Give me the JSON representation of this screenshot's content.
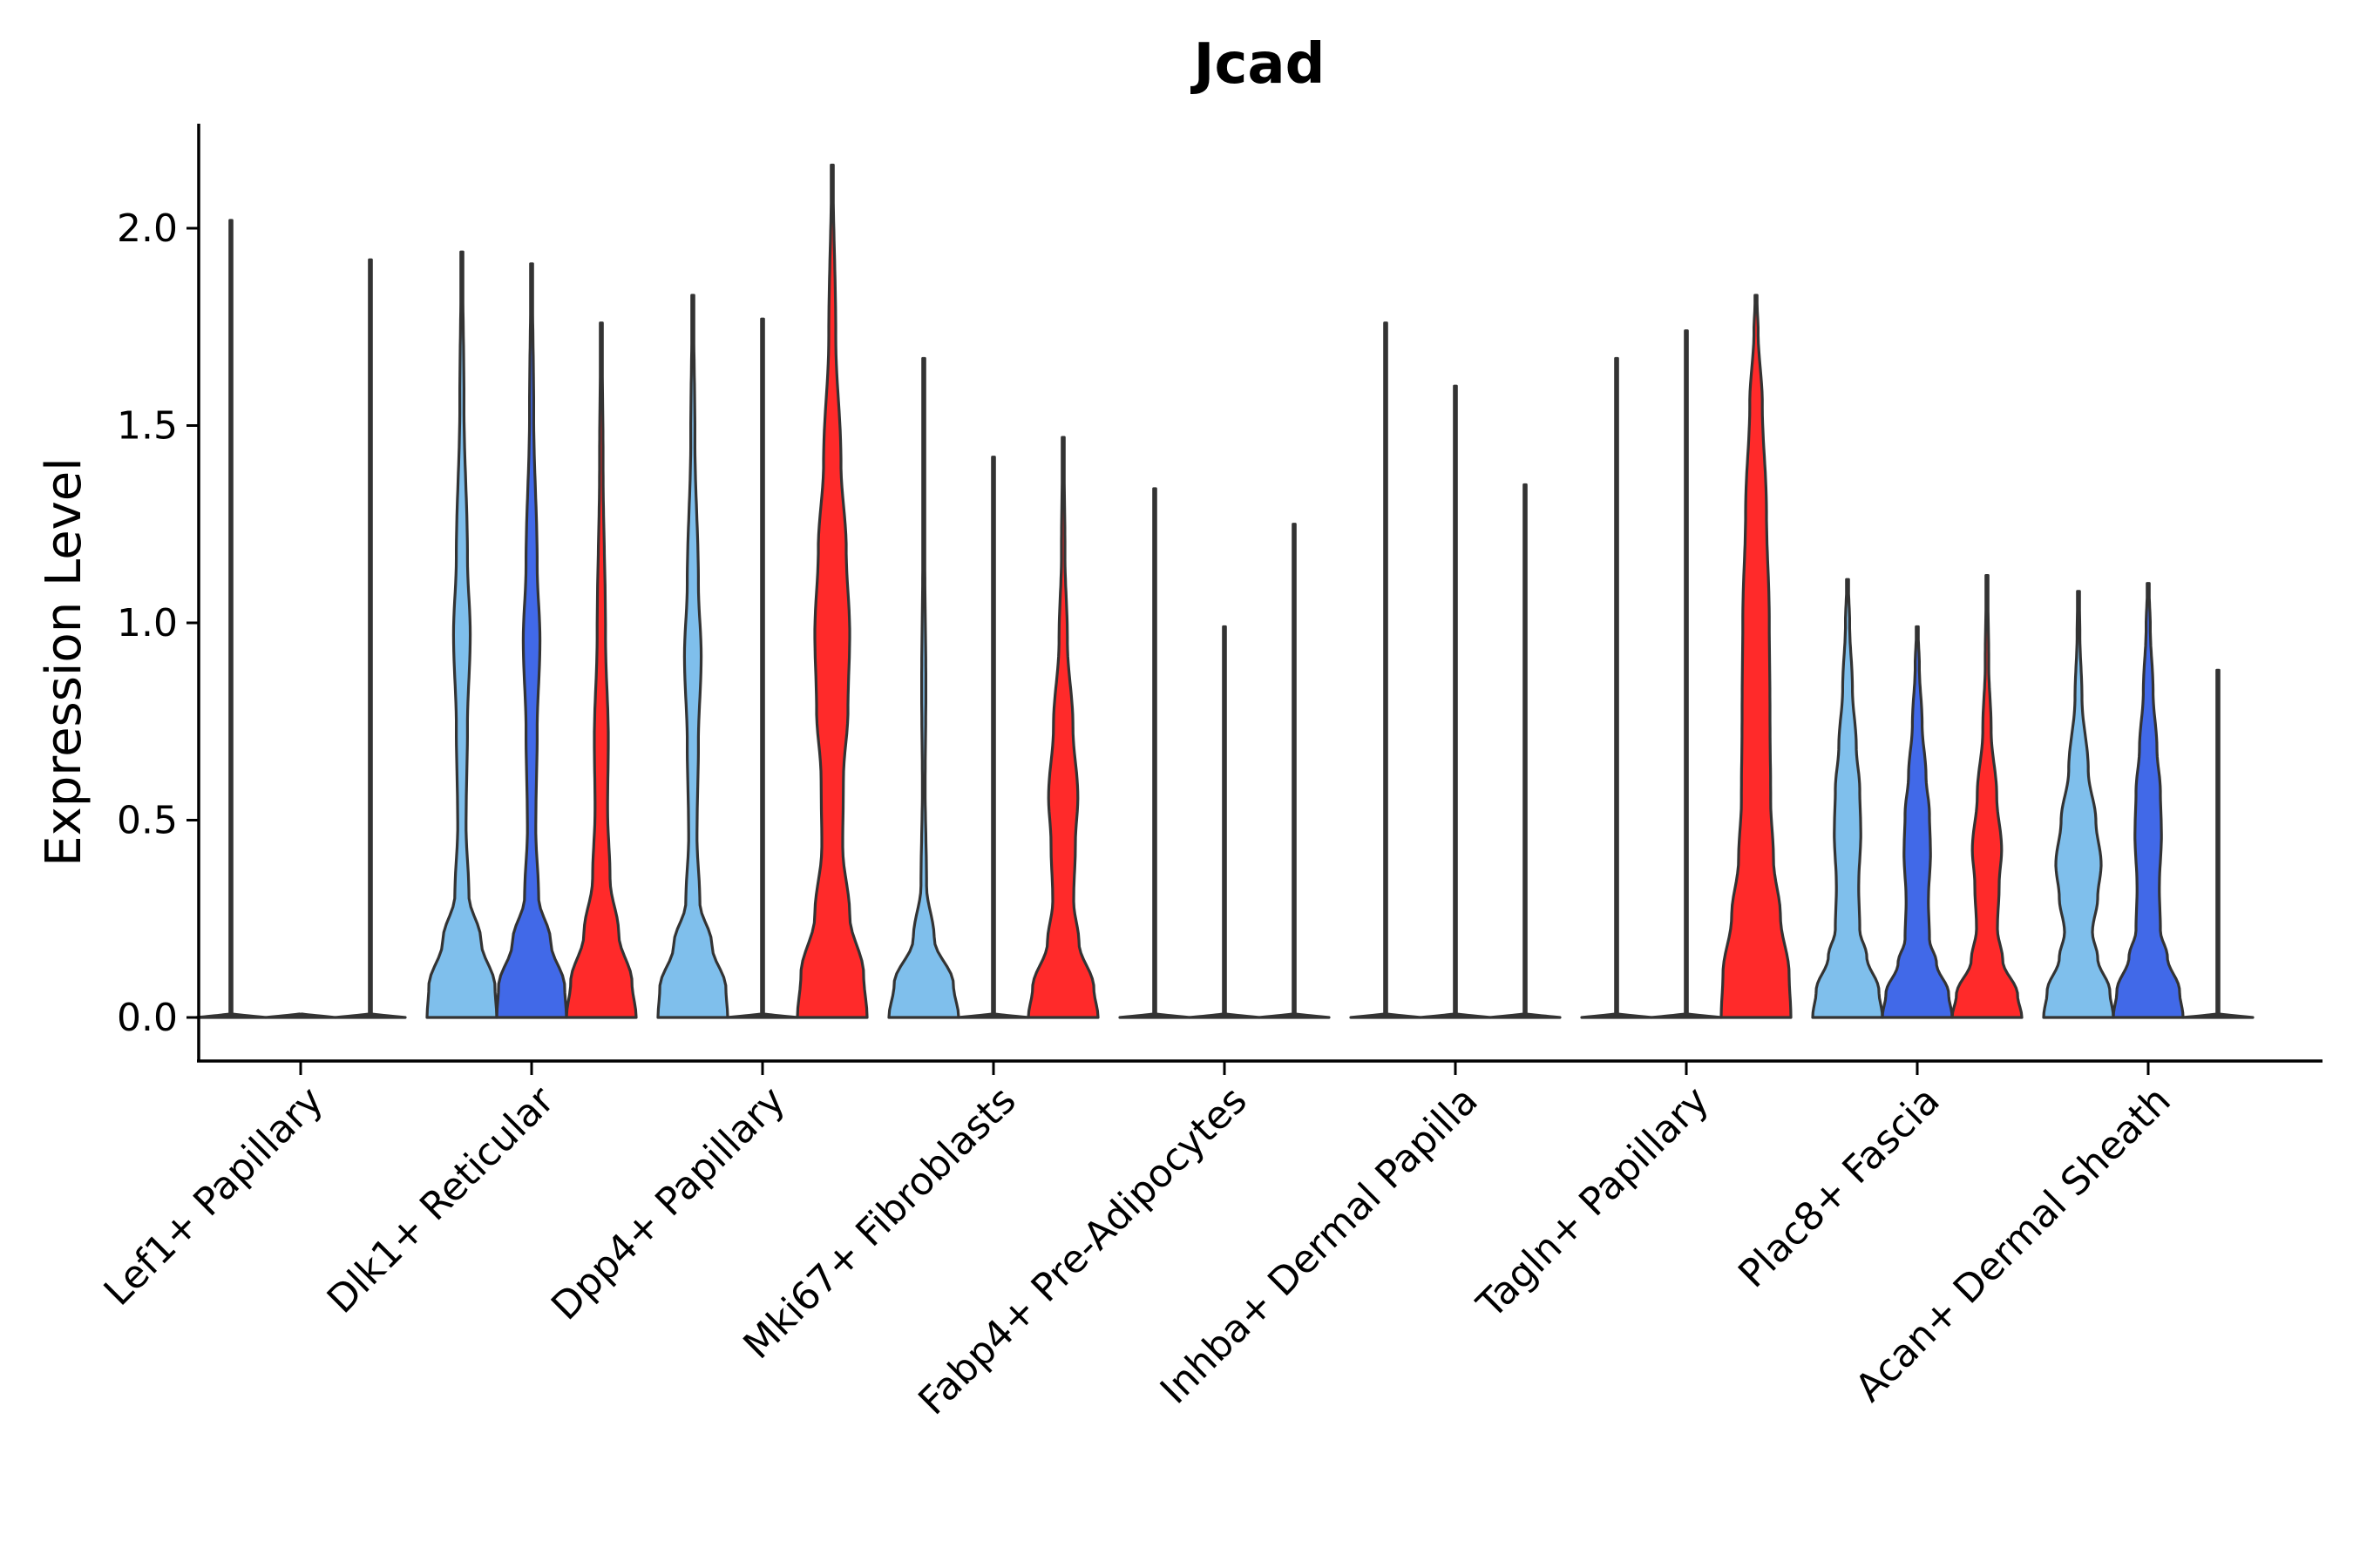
{
  "chart_data": {
    "type": "violin",
    "title": "Jcad",
    "xlabel": "",
    "ylabel": "Expression Level",
    "ylim": [
      -0.11,
      2.27
    ],
    "yticks": [
      0.0,
      0.5,
      1.0,
      1.5,
      2.0
    ],
    "ytick_labels": [
      "0.0",
      "0.5",
      "1.0",
      "1.5",
      "2.0"
    ],
    "series_colors": [
      "#7fbfec",
      "#4169e8",
      "#ff2a2a"
    ],
    "categories": [
      "Lef1+ Papillary",
      "Dlk1+ Reticular",
      "Dpp4+ Papillary",
      "Mki67+ Fibroblasts",
      "Fabp4+ Pre-Adipocytes",
      "Inhba+ Dermal Papilla",
      "Tagln+ Papillary",
      "Plac8+ Fascia",
      "Acan+ Dermal Sheath"
    ],
    "violins": [
      [
        {
          "max": 2.02,
          "shape": "flat"
        },
        {
          "max": 0.0,
          "shape": "flat"
        },
        {
          "max": 1.92,
          "shape": "flat"
        }
      ],
      [
        {
          "max": 1.94,
          "shape": "twohump"
        },
        {
          "max": 1.91,
          "shape": "twohump"
        },
        {
          "max": 1.76,
          "shape": "redlow"
        }
      ],
      [
        {
          "max": 1.83,
          "shape": "twohump"
        },
        {
          "max": 1.77,
          "shape": "flat"
        },
        {
          "max": 2.16,
          "shape": "redhigh"
        }
      ],
      [
        {
          "max": 1.67,
          "shape": "lowbump"
        },
        {
          "max": 1.42,
          "shape": "flat"
        },
        {
          "max": 1.47,
          "shape": "redmid"
        }
      ],
      [
        {
          "max": 1.34,
          "shape": "flat"
        },
        {
          "max": 0.99,
          "shape": "flat"
        },
        {
          "max": 1.25,
          "shape": "flat"
        }
      ],
      [
        {
          "max": 1.76,
          "shape": "flat"
        },
        {
          "max": 1.6,
          "shape": "flat"
        },
        {
          "max": 1.35,
          "shape": "flat"
        }
      ],
      [
        {
          "max": 1.67,
          "shape": "flat"
        },
        {
          "max": 1.74,
          "shape": "flat"
        },
        {
          "max": 1.83,
          "shape": "redwide"
        }
      ],
      [
        {
          "max": 1.11,
          "shape": "wide"
        },
        {
          "max": 0.99,
          "shape": "wide"
        },
        {
          "max": 1.12,
          "shape": "redmid"
        }
      ],
      [
        {
          "max": 1.08,
          "shape": "twohumpwide"
        },
        {
          "max": 1.1,
          "shape": "wide"
        },
        {
          "max": 0.88,
          "shape": "flat"
        }
      ]
    ]
  }
}
